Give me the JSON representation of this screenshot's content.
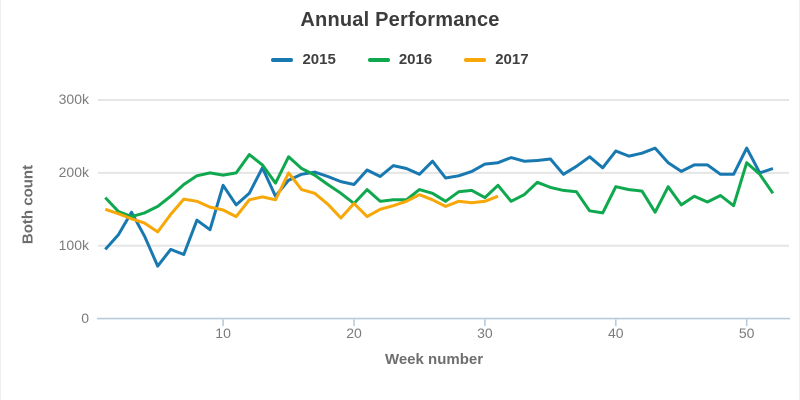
{
  "chart_data": {
    "type": "line",
    "title": "Annual Performance",
    "xlabel": "Week number",
    "ylabel": "Both count",
    "x_unit": "week number, weekly points starting at week 1",
    "y_unit": "count, values in thousands",
    "xlim": [
      0,
      53
    ],
    "ylim": [
      0,
      300
    ],
    "xticks": [
      10,
      20,
      30,
      40,
      50
    ],
    "yticks": [
      0,
      100,
      200,
      300
    ],
    "ytick_labels": [
      "0",
      "100k",
      "200k",
      "300k"
    ],
    "grid": "horizontal",
    "legend_position": "top",
    "axis_color": "#b7cbdb",
    "grid_color": "#e5e5e5",
    "series": [
      {
        "name": "2015",
        "color": "#1878b0",
        "values_k": [
          95,
          115,
          146,
          113,
          72,
          95,
          88,
          135,
          122,
          183,
          156,
          172,
          207,
          168,
          190,
          198,
          201,
          195,
          188,
          184,
          204,
          195,
          210,
          206,
          198,
          216,
          193,
          196,
          202,
          212,
          214,
          221,
          216,
          217,
          219,
          198,
          209,
          222,
          207,
          230,
          223,
          227,
          234,
          214,
          202,
          211,
          211,
          198,
          198,
          234,
          200,
          206
        ]
      },
      {
        "name": "2016",
        "color": "#0fa84e",
        "values_k": [
          166,
          147,
          140,
          145,
          154,
          168,
          184,
          196,
          200,
          197,
          200,
          225,
          211,
          186,
          222,
          206,
          197,
          184,
          172,
          158,
          177,
          161,
          163,
          163,
          177,
          172,
          161,
          174,
          176,
          166,
          183,
          161,
          170,
          187,
          180,
          176,
          174,
          148,
          145,
          181,
          177,
          175,
          146,
          181,
          156,
          168,
          160,
          169,
          155,
          214,
          198,
          172
        ]
      },
      {
        "name": "2017",
        "color": "#f7a707",
        "values_k": [
          150,
          144,
          137,
          131,
          119,
          143,
          164,
          161,
          153,
          149,
          140,
          163,
          167,
          163,
          200,
          177,
          172,
          157,
          138,
          158,
          140,
          150,
          155,
          161,
          170,
          163,
          154,
          161,
          159,
          161,
          168
        ]
      }
    ]
  }
}
